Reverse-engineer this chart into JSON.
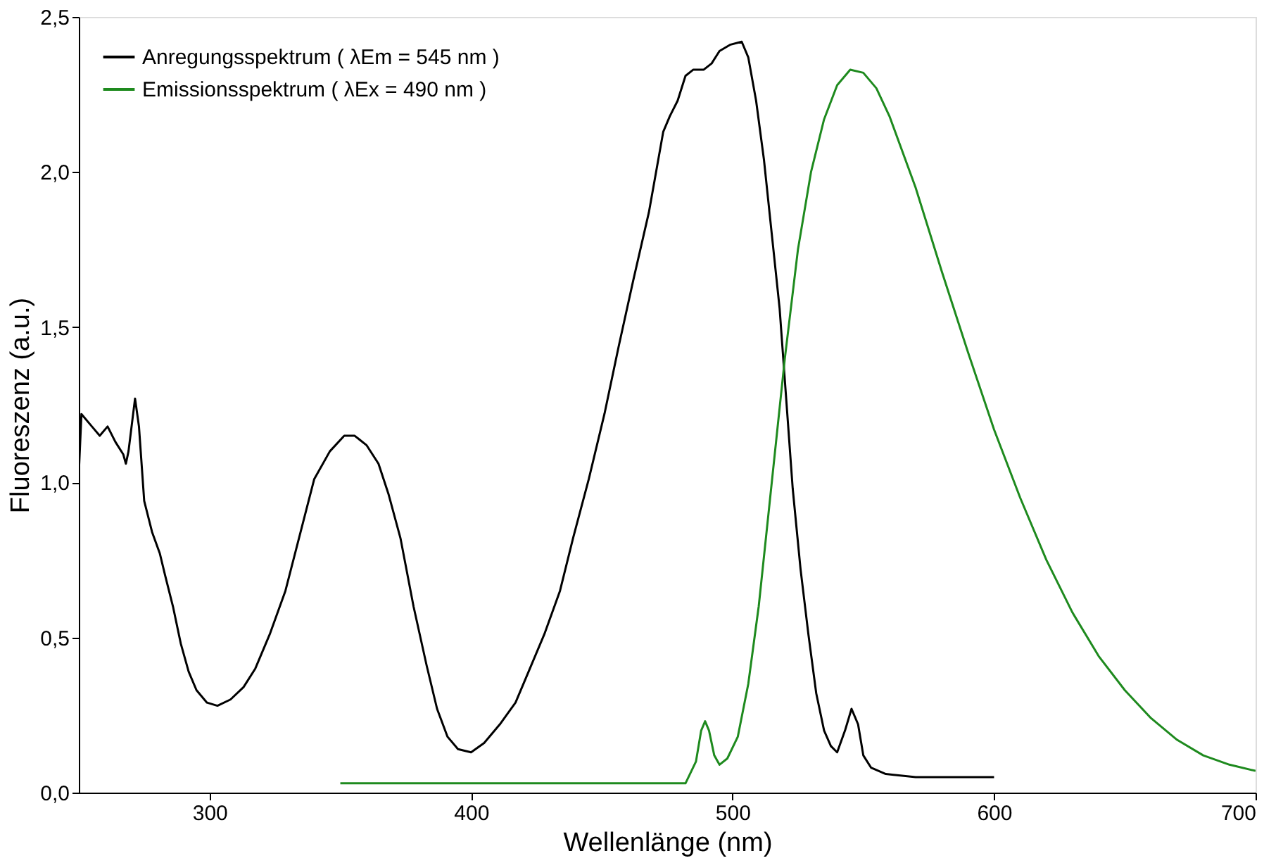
{
  "chart_data": {
    "type": "line",
    "xlabel": "Wellenlänge (nm)",
    "ylabel": "Fluoreszenz (a.u.)",
    "xlim": [
      250,
      700
    ],
    "xticks": [
      300,
      400,
      500,
      600,
      700
    ],
    "ylim": [
      0,
      2.5
    ],
    "yticks": [
      {
        "value": 0,
        "label": "0,0"
      },
      {
        "value": 0.5,
        "label": "0,5"
      },
      {
        "value": 1.0,
        "label": "1,0"
      },
      {
        "value": 1.5,
        "label": "1,5"
      },
      {
        "value": 2.0,
        "label": "2,0"
      },
      {
        "value": 2.5,
        "label": "2,5"
      }
    ],
    "grid": false,
    "legend": "top left",
    "marker": "none",
    "line_style": "solid",
    "series": [
      {
        "name": "Anregungsspektrum ( λEm = 545 nm )",
        "color": "#000000",
        "x": [
          250,
          251,
          255,
          258,
          261,
          264,
          267,
          268,
          269,
          271.5,
          273,
          275,
          278,
          281,
          283,
          286,
          289,
          292,
          295,
          299,
          303,
          308,
          313,
          317.5,
          323,
          329,
          334.5,
          340,
          346,
          351.5,
          355.5,
          360,
          364.6,
          368.5,
          373,
          378,
          383,
          387,
          391,
          395,
          400,
          405,
          411,
          417,
          422,
          428,
          434,
          439,
          445,
          451,
          456.5,
          462,
          468,
          473.5,
          476,
          479,
          482,
          485,
          489,
          492,
          495,
          499,
          503.5,
          506,
          509,
          512,
          515,
          518,
          520.5,
          523,
          526,
          529,
          532,
          535,
          537.6,
          540,
          543,
          545.5,
          548,
          550,
          553,
          558.6,
          570,
          587,
          600
        ],
        "values": [
          1.03,
          1.22,
          1.18,
          1.15,
          1.18,
          1.13,
          1.09,
          1.06,
          1.1,
          1.27,
          1.18,
          0.94,
          0.84,
          0.77,
          0.7,
          0.6,
          0.48,
          0.39,
          0.33,
          0.29,
          0.28,
          0.3,
          0.34,
          0.4,
          0.51,
          0.65,
          0.83,
          1.01,
          1.1,
          1.15,
          1.15,
          1.12,
          1.06,
          0.96,
          0.82,
          0.6,
          0.41,
          0.27,
          0.18,
          0.14,
          0.13,
          0.16,
          0.22,
          0.29,
          0.39,
          0.51,
          0.65,
          0.82,
          1.01,
          1.22,
          1.44,
          1.65,
          1.87,
          2.13,
          2.18,
          2.23,
          2.31,
          2.33,
          2.33,
          2.35,
          2.39,
          2.41,
          2.42,
          2.37,
          2.23,
          2.04,
          1.8,
          1.56,
          1.27,
          0.98,
          0.72,
          0.51,
          0.32,
          0.2,
          0.15,
          0.13,
          0.2,
          0.27,
          0.22,
          0.12,
          0.08,
          0.06,
          0.05,
          0.05,
          0.05
        ]
      },
      {
        "name": "Emissionsspektrum ( λEx = 490 nm )",
        "color": "#1e8a1e",
        "x": [
          350,
          400,
          450,
          482,
          486,
          488,
          489.5,
          491,
          493,
          495,
          498,
          502,
          506,
          510,
          515,
          520,
          525,
          530,
          535,
          540,
          545,
          550,
          555,
          560,
          570,
          580,
          590,
          600,
          610,
          620,
          630,
          640,
          650,
          660,
          670,
          680,
          690,
          700
        ],
        "values": [
          0.03,
          0.03,
          0.03,
          0.03,
          0.1,
          0.2,
          0.23,
          0.2,
          0.12,
          0.09,
          0.11,
          0.18,
          0.35,
          0.6,
          1.0,
          1.4,
          1.75,
          2.0,
          2.17,
          2.28,
          2.33,
          2.32,
          2.27,
          2.18,
          1.95,
          1.68,
          1.42,
          1.17,
          0.95,
          0.75,
          0.58,
          0.44,
          0.33,
          0.24,
          0.17,
          0.12,
          0.09,
          0.07
        ]
      }
    ]
  }
}
